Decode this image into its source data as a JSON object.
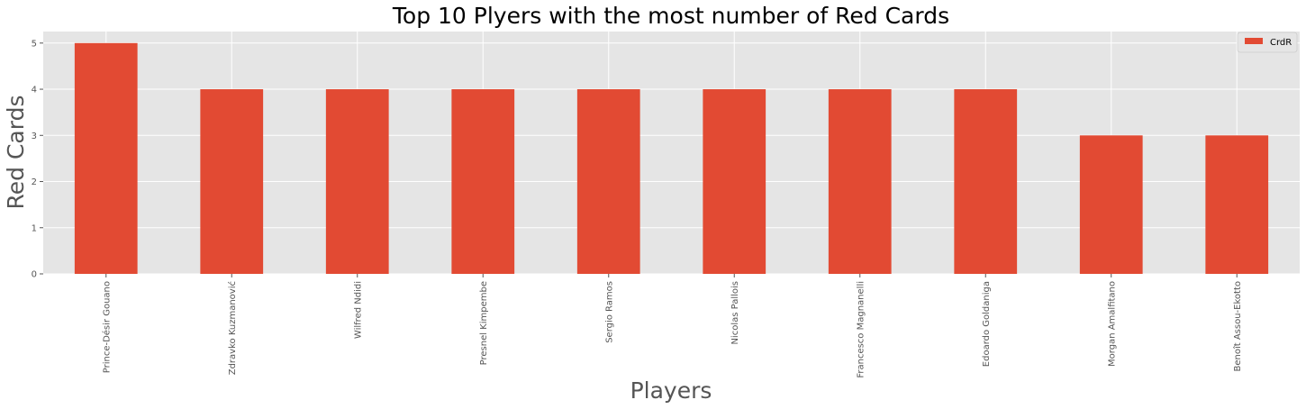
{
  "chart_data": {
    "type": "bar",
    "title": "Top 10 Plyers with the most number of Red Cards",
    "xlabel": "Players",
    "ylabel": "Red Cards",
    "categories": [
      "Prince-Désir Gouano",
      "Zdravko Kuzmanović",
      "Wilfred Ndidi",
      "Presnel Kimpembe",
      "Sergio Ramos",
      "Nicolas Pallois",
      "Francesco Magnanelli",
      "Edoardo Goldaniga",
      "Morgan Amalfitano",
      "Benoît Assou-Ekotto"
    ],
    "series": [
      {
        "name": "CrdR",
        "values": [
          5,
          4,
          4,
          4,
          4,
          4,
          4,
          4,
          3,
          3
        ]
      }
    ],
    "ylim": [
      0,
      5.25
    ],
    "yticks": [
      "0",
      "1",
      "2",
      "3",
      "4",
      "5"
    ],
    "grid": true,
    "legend": "top-right",
    "colors": {
      "bar": "#E24A33",
      "plot_background": "#E5E5E5",
      "grid": "#FFFFFF",
      "tick_text": "#555555",
      "title_text": "#000000"
    }
  }
}
